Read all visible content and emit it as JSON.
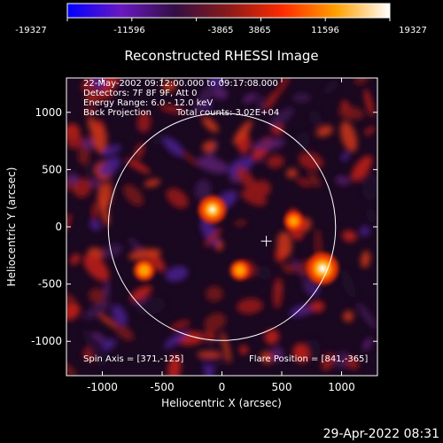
{
  "colorbar": {
    "ticks": [
      "-19327",
      "-11596",
      "-3865",
      "3865",
      "11596",
      "19327"
    ],
    "range": [
      -19327,
      19327
    ]
  },
  "chart_data": {
    "type": "heatmap",
    "title": "Reconstructed RHESSI Image",
    "xlabel": "Heliocentric X (arcsec)",
    "ylabel": "Heliocentric Y (arcsec)",
    "xlim": [
      -1300,
      1300
    ],
    "ylim": [
      -1300,
      1300
    ],
    "xticks": [
      -1000,
      -500,
      0,
      500,
      1000
    ],
    "yticks": [
      -1000,
      -500,
      0,
      500,
      1000
    ],
    "xtick_labels": [
      "-1000",
      "-500",
      "0",
      "500",
      "1000"
    ],
    "ytick_labels": [
      "-1000",
      "-500",
      "0",
      "500",
      "1000"
    ],
    "info_lines": [
      "22-May-2002 09:12:00.000 to 09:17:08.000",
      "Detectors: 7F 8F 9F, Att 0",
      "Energy Range: 6.0 - 12.0 keV",
      "Back Projection"
    ],
    "total_counts": "Total counts: 3.02E+04",
    "spin_axis": "Spin Axis = [371,-125]",
    "flare_position": "Flare Position = [841,-365]",
    "solar_disk": {
      "center": [
        0,
        0
      ],
      "radius": 950
    },
    "spin_axis_point": [
      371,
      -125
    ],
    "sources": [
      {
        "x": 841,
        "y": -365,
        "strength": 1.0
      },
      {
        "x": -80,
        "y": 150,
        "strength": 0.82
      },
      {
        "x": -650,
        "y": -380,
        "strength": 0.55
      },
      {
        "x": 150,
        "y": -380,
        "strength": 0.5
      },
      {
        "x": 600,
        "y": 50,
        "strength": 0.45
      }
    ],
    "colormap": [
      "#0000ff",
      "#6a18c0",
      "#320f44",
      "#8a1a1a",
      "#ff2a00",
      "#ffa000",
      "#ffffff"
    ]
  },
  "footer": {
    "timestamp": "29-Apr-2022 08:31"
  }
}
